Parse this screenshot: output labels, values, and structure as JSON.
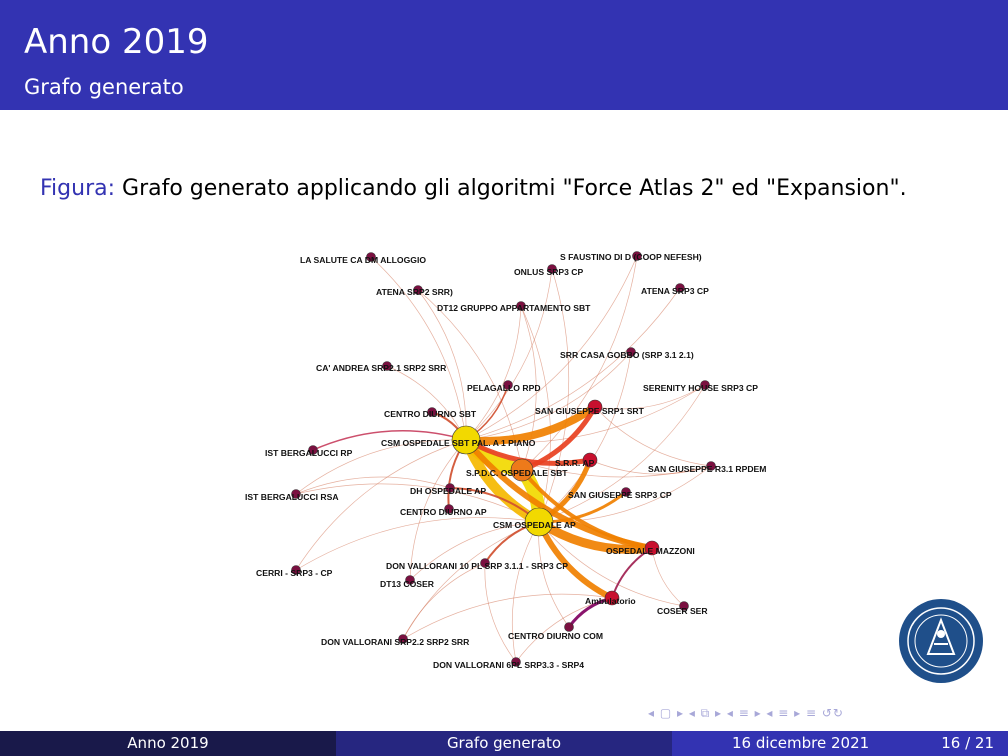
{
  "header": {
    "title": "Anno 2019",
    "subtitle": "Grafo generato"
  },
  "caption": {
    "label": "Figura:",
    "text": "Grafo generato applicando gli algoritmi \"Force Atlas 2\" ed \"Expansion\"."
  },
  "graph": {
    "nodes": [
      {
        "label": "LA SALUTE CA DM  ALLOGGIO",
        "weight": 1
      },
      {
        "label": "S FAUSTINO DI D (COOP NEFESH)",
        "weight": 1
      },
      {
        "label": "ONLUS SRP3 CP",
        "weight": 1
      },
      {
        "label": "ATENA SRP2 SRR)",
        "weight": 1
      },
      {
        "label": "ATENA SRP3 CP",
        "weight": 1
      },
      {
        "label": "DT12 GRUPPO APPARTAMENTO SBT",
        "weight": 1
      },
      {
        "label": "SRR CASA GOBBO (SRP 3.1 2.1)",
        "weight": 1
      },
      {
        "label": "CA' ANDREA SRP2.1 SRP2 SRR",
        "weight": 1
      },
      {
        "label": "PELAGALLO RPD",
        "weight": 1
      },
      {
        "label": "SERENITY HOUSE SRP3 CP",
        "weight": 1
      },
      {
        "label": "CENTRO DIURNO SBT",
        "weight": 1
      },
      {
        "label": "SAN GIUSEPPE SRP1 SRT",
        "weight": 2
      },
      {
        "label": "CSM OSPEDALE SBT PAL. A 1 PIANO",
        "weight": 4
      },
      {
        "label": "IST BERGALUCCI RP",
        "weight": 1
      },
      {
        "label": "S.P.D.C. OSPEDALE SBT",
        "weight": 3
      },
      {
        "label": "S.R.R. AP",
        "weight": 2
      },
      {
        "label": "SAN GIUSEPPE R3.1 RPDEM",
        "weight": 1
      },
      {
        "label": "DH OSPEDALE AP",
        "weight": 1
      },
      {
        "label": "SAN GIUSEPPE SRP3 CP",
        "weight": 1
      },
      {
        "label": "IST BERGALUCCI RSA",
        "weight": 1
      },
      {
        "label": "CENTRO DIURNO AP",
        "weight": 1
      },
      {
        "label": "CSM OSPEDALE AP",
        "weight": 4
      },
      {
        "label": "OSPEDALE MAZZONI",
        "weight": 2
      },
      {
        "label": "DON VALLORANI 10 PL SRP 3.1.1 - SRP3 CP",
        "weight": 1
      },
      {
        "label": "CERRI - SRP3 - CP",
        "weight": 1
      },
      {
        "label": "DT13 COSER",
        "weight": 1
      },
      {
        "label": "Ambulatorio",
        "weight": 2
      },
      {
        "label": "COSER  SER",
        "weight": 1
      },
      {
        "label": "CENTRO DIURNO COM",
        "weight": 1
      },
      {
        "label": "DON VALLORANI SRP2.2 SRP2 SRR",
        "weight": 1
      },
      {
        "label": "DON VALLORANI 6PL SRP3.3 - SRP4",
        "weight": 1
      }
    ]
  },
  "nav": {
    "symbols": "◂ ▢ ▸ ◂ ⧉ ▸ ◂ ≡ ▸ ◂ ≡ ▸   ≡   ↺↻"
  },
  "footer": {
    "left": "Anno 2019",
    "center": "Grafo generato",
    "date": "16 dicembre 2021",
    "page": "16 / 21"
  },
  "colors": {
    "primary": "#3333b2",
    "dark": "#19194a",
    "mid": "#262680",
    "node_default": "#7a1040",
    "node_large": "#f2d900",
    "edge_strong": "#f08000"
  }
}
